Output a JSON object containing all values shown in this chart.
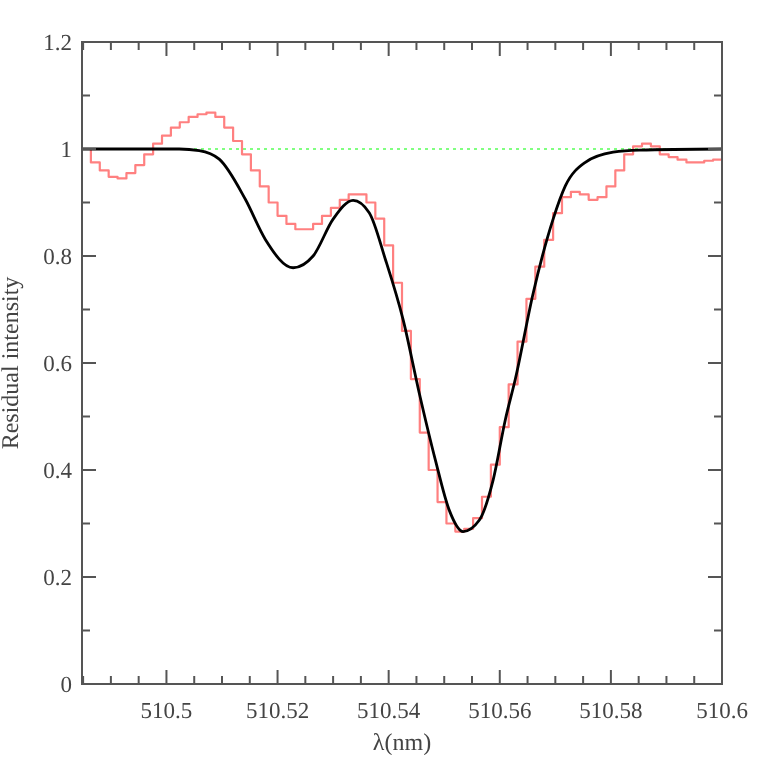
{
  "chart_data": {
    "type": "line",
    "xlabel": "λ(nm)",
    "ylabel": "Residual intensity",
    "xlim": [
      510.4848,
      510.6
    ],
    "ylim": [
      0,
      1.2
    ],
    "xticks": [
      {
        "value": 510.485,
        "label": null
      },
      {
        "value": 510.49,
        "label": null
      },
      {
        "value": 510.495,
        "label": null
      },
      510.5,
      {
        "value": 510.505,
        "label": null
      },
      {
        "value": 510.51,
        "label": null
      },
      {
        "value": 510.515,
        "label": null
      },
      510.52,
      {
        "value": 510.525,
        "label": null
      },
      {
        "value": 510.53,
        "label": null
      },
      {
        "value": 510.535,
        "label": null
      },
      510.54,
      {
        "value": 510.545,
        "label": null
      },
      {
        "value": 510.55,
        "label": null
      },
      {
        "value": 510.555,
        "label": null
      },
      510.56,
      {
        "value": 510.565,
        "label": null
      },
      {
        "value": 510.57,
        "label": null
      },
      {
        "value": 510.575,
        "label": null
      },
      510.58,
      {
        "value": 510.585,
        "label": null
      },
      {
        "value": 510.59,
        "label": null
      },
      {
        "value": 510.595,
        "label": null
      },
      510.6
    ],
    "yticks": [
      0,
      {
        "value": 0.1,
        "label": null
      },
      0.2,
      {
        "value": 0.3,
        "label": null
      },
      0.4,
      {
        "value": 0.5,
        "label": null
      },
      0.6,
      {
        "value": 0.7,
        "label": null
      },
      0.8,
      {
        "value": 0.9,
        "label": null
      },
      1,
      {
        "value": 1.1,
        "label": null
      },
      1.2
    ],
    "grid": false,
    "ref_lines": [
      {
        "axis": "y",
        "value": 1,
        "color": "#80ff80",
        "line_style": "dotted"
      }
    ],
    "series": [
      {
        "type": "step",
        "color": "#ff8080",
        "x": [
          510.4848,
          510.4864,
          510.488,
          510.4896,
          510.4912,
          510.4928,
          510.4944,
          510.496,
          510.4976,
          510.4992,
          510.5008,
          510.5024,
          510.504,
          510.5056,
          510.5072,
          510.5088,
          510.5104,
          510.512,
          510.5136,
          510.5152,
          510.5168,
          510.5184,
          510.52,
          510.5216,
          510.5232,
          510.5248,
          510.5264,
          510.528,
          510.5296,
          510.5312,
          510.5328,
          510.5344,
          510.536,
          510.5376,
          510.5392,
          510.5408,
          510.5424,
          510.544,
          510.5456,
          510.5472,
          510.5488,
          510.5504,
          510.552,
          510.5536,
          510.5552,
          510.5568,
          510.5584,
          510.56,
          510.5616,
          510.5632,
          510.5648,
          510.5664,
          510.568,
          510.5696,
          510.5712,
          510.5728,
          510.5744,
          510.576,
          510.5776,
          510.5792,
          510.5808,
          510.5824,
          510.584,
          510.5856,
          510.5872,
          510.5888,
          510.5904,
          510.592,
          510.5936,
          510.5952,
          510.5968,
          510.5984,
          510.6
        ],
        "values": [
          1.0,
          0.975,
          0.96,
          0.948,
          0.945,
          0.955,
          0.97,
          0.99,
          1.01,
          1.025,
          1.04,
          1.05,
          1.06,
          1.065,
          1.068,
          1.06,
          1.04,
          1.015,
          0.99,
          0.96,
          0.93,
          0.9,
          0.875,
          0.86,
          0.85,
          0.85,
          0.86,
          0.875,
          0.89,
          0.905,
          0.915,
          0.915,
          0.9,
          0.87,
          0.82,
          0.75,
          0.66,
          0.57,
          0.47,
          0.4,
          0.34,
          0.3,
          0.285,
          0.29,
          0.31,
          0.35,
          0.41,
          0.48,
          0.56,
          0.64,
          0.72,
          0.78,
          0.83,
          0.88,
          0.91,
          0.92,
          0.915,
          0.905,
          0.91,
          0.93,
          0.96,
          0.99,
          1.005,
          1.01,
          1.005,
          0.99,
          0.985,
          0.98,
          0.975,
          0.975,
          0.978,
          0.98,
          0.98
        ]
      },
      {
        "color": "#000000",
        "x": [
          510.4848,
          510.5023,
          510.5059,
          510.5095,
          510.5142,
          510.5178,
          510.5228,
          510.5264,
          510.53,
          510.5336,
          510.5365,
          510.5394,
          510.5426,
          510.5455,
          510.5484,
          510.5509,
          510.5534,
          510.5563,
          510.5588,
          510.561,
          510.5628,
          510.566,
          510.5696,
          510.5718,
          510.5754,
          510.5804,
          510.5851,
          510.6
        ],
        "values": [
          1.0,
          1.0,
          0.997,
          0.981,
          0.906,
          0.831,
          0.778,
          0.8,
          0.869,
          0.904,
          0.881,
          0.794,
          0.681,
          0.544,
          0.419,
          0.325,
          0.285,
          0.306,
          0.381,
          0.494,
          0.57,
          0.73,
          0.869,
          0.931,
          0.975,
          0.994,
          0.998,
          1.0
        ]
      }
    ]
  }
}
